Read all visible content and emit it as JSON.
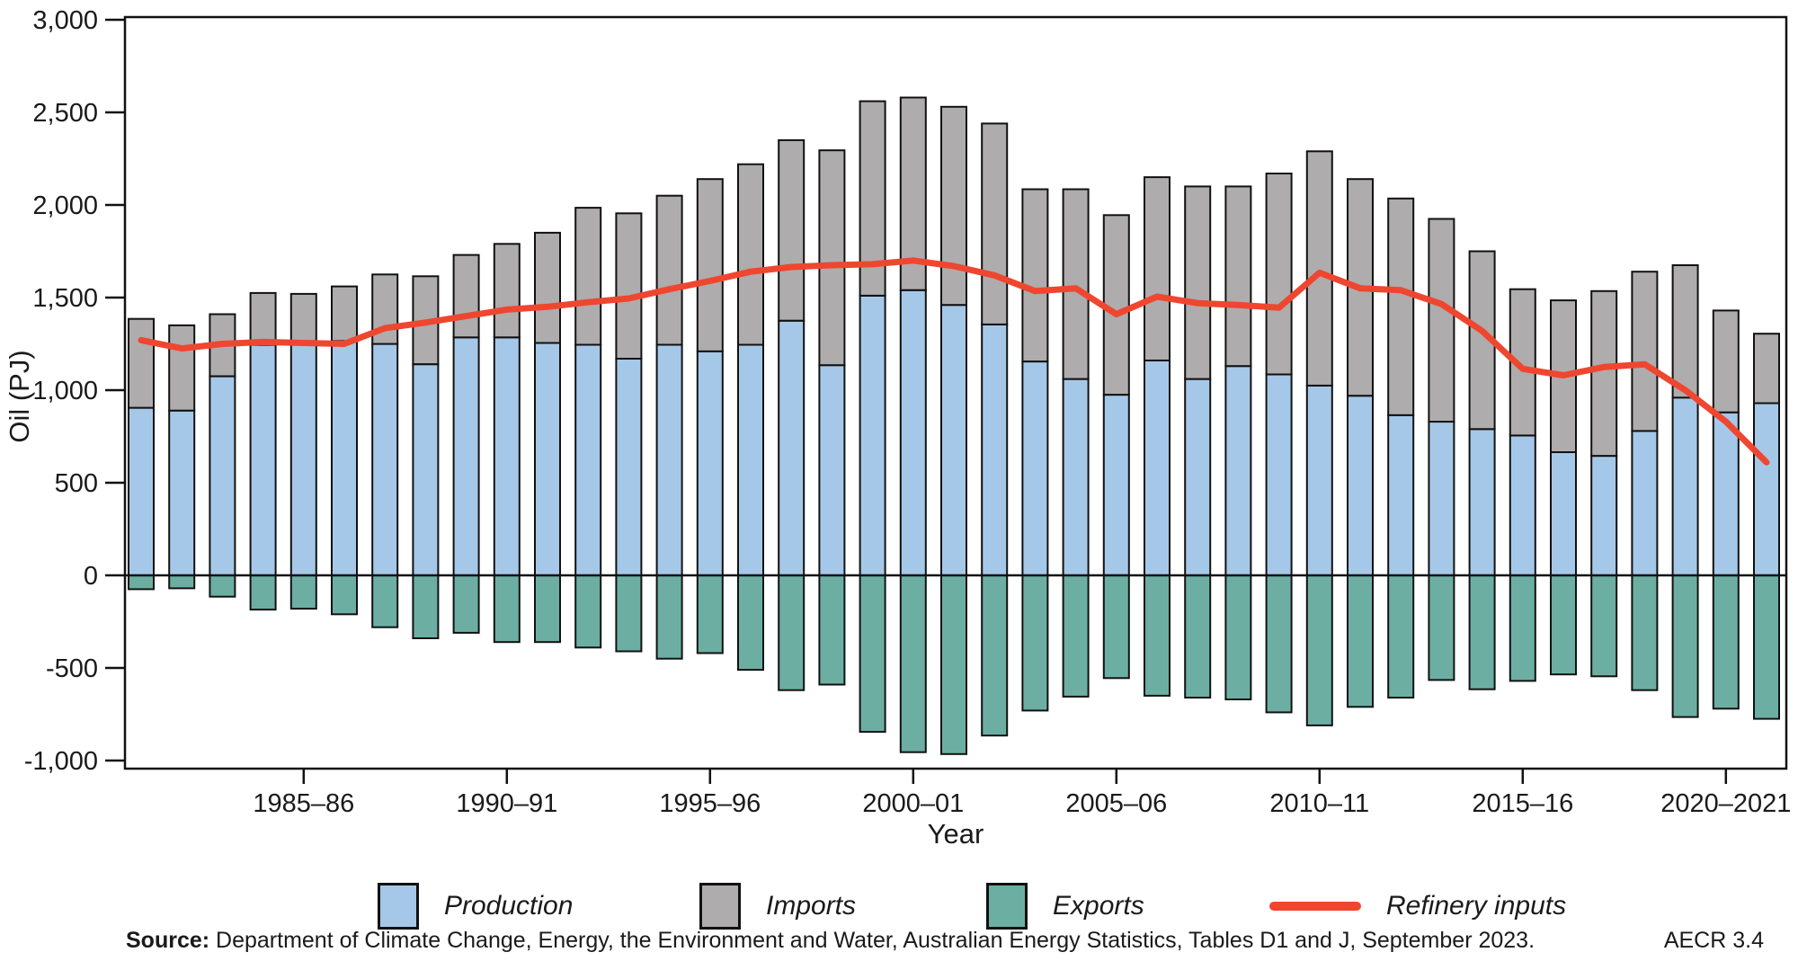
{
  "chart_data": {
    "type": "bar",
    "subtype": "stacked-bars-with-line",
    "title": "",
    "xlabel": "Year",
    "ylabel": "Oil (PJ)",
    "ylim": [
      -1040,
      3010
    ],
    "grid": false,
    "legend_position": "bottom",
    "categories": [
      "1981–82",
      "1982–83",
      "1983–84",
      "1984–85",
      "1985–86",
      "1986–87",
      "1987–88",
      "1988–89",
      "1989–90",
      "1990–91",
      "1991–92",
      "1992–93",
      "1993–94",
      "1994–95",
      "1995–96",
      "1996–97",
      "1997–98",
      "1998–99",
      "1999–00",
      "2000–01",
      "2001–02",
      "2002–03",
      "2003–04",
      "2004–05",
      "2005–06",
      "2006–07",
      "2007–08",
      "2008–09",
      "2009–10",
      "2010–11",
      "2011–12",
      "2012–13",
      "2013–14",
      "2014–15",
      "2015–16",
      "2016–17",
      "2017–18",
      "2018–19",
      "2019–20",
      "2020–21",
      "2021–22"
    ],
    "series": [
      {
        "name": "Production",
        "type": "bar",
        "stack": "positive",
        "color": "#a6c8e8",
        "values": [
          905,
          890,
          1075,
          1245,
          1265,
          1265,
          1250,
          1140,
          1285,
          1285,
          1255,
          1245,
          1170,
          1245,
          1210,
          1245,
          1375,
          1135,
          1510,
          1540,
          1460,
          1355,
          1155,
          1060,
          975,
          1160,
          1060,
          1130,
          1085,
          1025,
          970,
          865,
          830,
          790,
          755,
          665,
          645,
          780,
          960,
          880,
          930
        ]
      },
      {
        "name": "Imports",
        "type": "bar",
        "stack": "positive",
        "color": "#aeacac",
        "values": [
          480,
          460,
          335,
          280,
          255,
          295,
          375,
          475,
          445,
          505,
          595,
          740,
          785,
          805,
          930,
          975,
          975,
          1160,
          1050,
          1040,
          1070,
          1085,
          930,
          1025,
          970,
          990,
          1040,
          970,
          1085,
          1265,
          1170,
          1170,
          1095,
          960,
          790,
          820,
          890,
          860,
          715,
          550,
          375
        ]
      },
      {
        "name": "Exports",
        "type": "bar",
        "stack": "negative",
        "color": "#6cafa2",
        "values": [
          -75,
          -70,
          -115,
          -185,
          -180,
          -210,
          -280,
          -340,
          -310,
          -360,
          -360,
          -390,
          -410,
          -450,
          -420,
          -510,
          -620,
          -590,
          -845,
          -955,
          -965,
          -865,
          -730,
          -655,
          -555,
          -650,
          -660,
          -670,
          -740,
          -810,
          -710,
          -660,
          -565,
          -615,
          -570,
          -535,
          -545,
          -620,
          -765,
          -720,
          -775
        ]
      },
      {
        "name": "Refinery inputs",
        "type": "line",
        "color": "#ef4630",
        "values": [
          1270,
          1225,
          1250,
          1260,
          1255,
          1250,
          1335,
          1365,
          1400,
          1435,
          1450,
          1475,
          1495,
          1545,
          1590,
          1640,
          1665,
          1675,
          1680,
          1700,
          1670,
          1620,
          1535,
          1550,
          1410,
          1505,
          1470,
          1460,
          1445,
          1634,
          1550,
          1540,
          1465,
          1320,
          1115,
          1080,
          1125,
          1140,
          1000,
          830,
          610
        ]
      }
    ],
    "y_ticks": {
      "values": [
        3000,
        2500,
        2000,
        1500,
        1000,
        500,
        0,
        -500,
        -1000
      ],
      "labels": [
        "3,000",
        "2,500",
        "2,000",
        "1,500",
        "1,000",
        "500",
        "0",
        "-500",
        "-1,000"
      ]
    },
    "x_ticks": {
      "category_indices": [
        4,
        9,
        14,
        19,
        24,
        29,
        34,
        39
      ],
      "labels": [
        "1985–86",
        "1990–91",
        "1995–96",
        "2000–01",
        "2005–06",
        "2010–11",
        "2015–16",
        "2020–2021"
      ]
    }
  },
  "axis_titles": {
    "y": "Oil (PJ)",
    "x": "Year"
  },
  "legend": [
    {
      "label": "Production",
      "swatch": "blue-box"
    },
    {
      "label": "Imports",
      "swatch": "gray-box"
    },
    {
      "label": "Exports",
      "swatch": "teal-box"
    },
    {
      "label": "Refinery inputs",
      "swatch": "red-line"
    }
  ],
  "footer": {
    "source_prefix": "Source:",
    "source_text": " Department of Climate Change, Energy, the Environment and Water, Australian Energy Statistics, Tables D1 and J, September 2023.",
    "tag": "AECR 3.4"
  },
  "colors": {
    "production": "#a6c8e8",
    "imports": "#aeacac",
    "exports": "#6cafa2",
    "refinery_line": "#ef4630",
    "axis": "#111111",
    "text": "#1a1a1a"
  }
}
